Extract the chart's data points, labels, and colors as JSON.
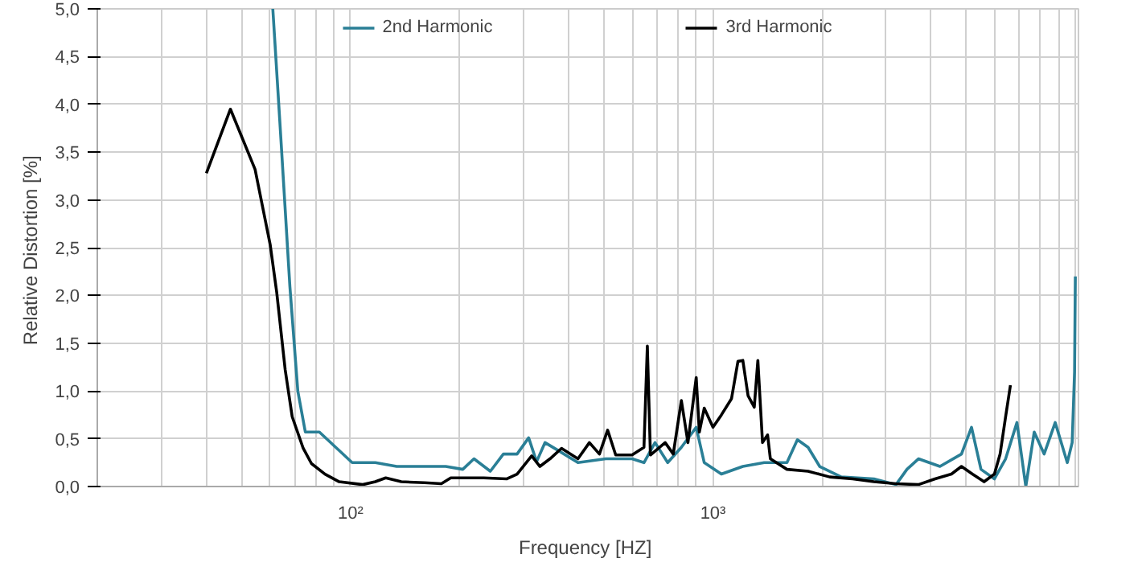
{
  "chart_data": {
    "type": "line",
    "xlabel": "Frequency  [HZ]",
    "ylabel": "Relative Distortion  [%]",
    "log": "x",
    "grid": true,
    "legend": "top",
    "line_style": "solid",
    "marker": "none",
    "xlim": [
      20,
      10200
    ],
    "ylim": [
      0,
      5
    ],
    "xticks": [
      {
        "value": 20,
        "label": null
      },
      {
        "value": 30,
        "label": null
      },
      {
        "value": 40,
        "label": null
      },
      {
        "value": 50,
        "label": null
      },
      {
        "value": 60,
        "label": null
      },
      {
        "value": 70,
        "label": null
      },
      {
        "value": 80,
        "label": null
      },
      {
        "value": 90,
        "label": null
      },
      {
        "value": 100,
        "label": "10²"
      },
      {
        "value": 200,
        "label": null
      },
      {
        "value": 300,
        "label": null
      },
      {
        "value": 400,
        "label": null
      },
      {
        "value": 500,
        "label": null
      },
      {
        "value": 600,
        "label": null
      },
      {
        "value": 700,
        "label": null
      },
      {
        "value": 800,
        "label": null
      },
      {
        "value": 900,
        "label": null
      },
      {
        "value": 1000,
        "label": "10³"
      },
      {
        "value": 2000,
        "label": null
      },
      {
        "value": 3000,
        "label": null
      },
      {
        "value": 4000,
        "label": null
      },
      {
        "value": 5000,
        "label": null
      },
      {
        "value": 6000,
        "label": null
      },
      {
        "value": 7000,
        "label": null
      },
      {
        "value": 8000,
        "label": null
      },
      {
        "value": 9000,
        "label": null
      },
      {
        "value": 10000,
        "label": null
      }
    ],
    "yticks": [
      {
        "value": 0,
        "label": "0,0"
      },
      {
        "value": 0.5,
        "label": "0,5"
      },
      {
        "value": 1,
        "label": "1,0"
      },
      {
        "value": 1.5,
        "label": "1,5"
      },
      {
        "value": 2,
        "label": "2,0"
      },
      {
        "value": 2.5,
        "label": "2,5"
      },
      {
        "value": 3,
        "label": "3,0"
      },
      {
        "value": 3.5,
        "label": "3,5"
      },
      {
        "value": 4,
        "label": "4,0"
      },
      {
        "value": 4.5,
        "label": "4,5"
      },
      {
        "value": 5,
        "label": "5,0"
      }
    ],
    "series": [
      {
        "name": "2nd Harmonic",
        "color": "#2a7f96",
        "x": [
          61,
          64,
          68,
          71.5,
          75,
          82,
          91,
          101,
          117,
          134,
          165,
          183,
          204,
          219,
          243,
          264,
          288,
          310,
          326,
          344,
          373,
          424,
          506,
          598,
          645,
          692,
          750,
          818,
          899,
          946,
          1055,
          1209,
          1385,
          1600,
          1710,
          1830,
          1970,
          2260,
          2780,
          3200,
          3430,
          3690,
          4230,
          4850,
          5170,
          5490,
          5980,
          6420,
          6900,
          7300,
          7700,
          8200,
          8800,
          9500,
          9800,
          9950,
          10000
        ],
        "values": [
          5.0,
          3.73,
          2.09,
          1.0,
          0.57,
          0.57,
          0.41,
          0.25,
          0.25,
          0.21,
          0.21,
          0.21,
          0.18,
          0.29,
          0.16,
          0.34,
          0.34,
          0.51,
          0.26,
          0.46,
          0.38,
          0.25,
          0.29,
          0.29,
          0.25,
          0.46,
          0.25,
          0.41,
          0.62,
          0.25,
          0.13,
          0.21,
          0.25,
          0.25,
          0.49,
          0.41,
          0.21,
          0.1,
          0.08,
          0.02,
          0.18,
          0.29,
          0.21,
          0.34,
          0.62,
          0.18,
          0.08,
          0.29,
          0.67,
          0.0,
          0.57,
          0.34,
          0.67,
          0.25,
          0.46,
          1.2,
          2.2
        ]
      },
      {
        "name": "3rd Harmonic",
        "color": "#000000",
        "x": [
          40,
          46.6,
          54.5,
          60,
          62.5,
          66,
          69,
          74,
          78,
          85,
          93,
          108,
          117,
          125,
          138,
          160,
          178,
          189,
          233,
          270,
          288,
          316,
          333,
          355,
          382,
          424,
          456,
          486,
          512,
          539,
          598,
          645,
          659,
          672,
          738,
          777,
          818,
          853,
          899,
          917,
          946,
          1000,
          1055,
          1125,
          1172,
          1209,
          1250,
          1300,
          1330,
          1370,
          1415,
          1440,
          1600,
          1830,
          2100,
          2430,
          2780,
          3200,
          3690,
          4100,
          4550,
          4850,
          5200,
          5600,
          5980,
          6200,
          6420,
          6620
        ],
        "values": [
          3.28,
          3.95,
          3.32,
          2.53,
          2.04,
          1.22,
          0.73,
          0.4,
          0.24,
          0.13,
          0.05,
          0.02,
          0.05,
          0.09,
          0.05,
          0.04,
          0.03,
          0.09,
          0.09,
          0.08,
          0.13,
          0.32,
          0.21,
          0.29,
          0.4,
          0.29,
          0.46,
          0.34,
          0.59,
          0.33,
          0.33,
          0.41,
          1.47,
          0.33,
          0.46,
          0.34,
          0.9,
          0.46,
          1.14,
          0.57,
          0.82,
          0.62,
          0.75,
          0.92,
          1.31,
          1.32,
          0.95,
          0.83,
          1.32,
          0.46,
          0.54,
          0.29,
          0.18,
          0.16,
          0.1,
          0.08,
          0.05,
          0.03,
          0.02,
          0.08,
          0.13,
          0.21,
          0.13,
          0.05,
          0.13,
          0.34,
          0.73,
          1.06
        ]
      }
    ]
  }
}
